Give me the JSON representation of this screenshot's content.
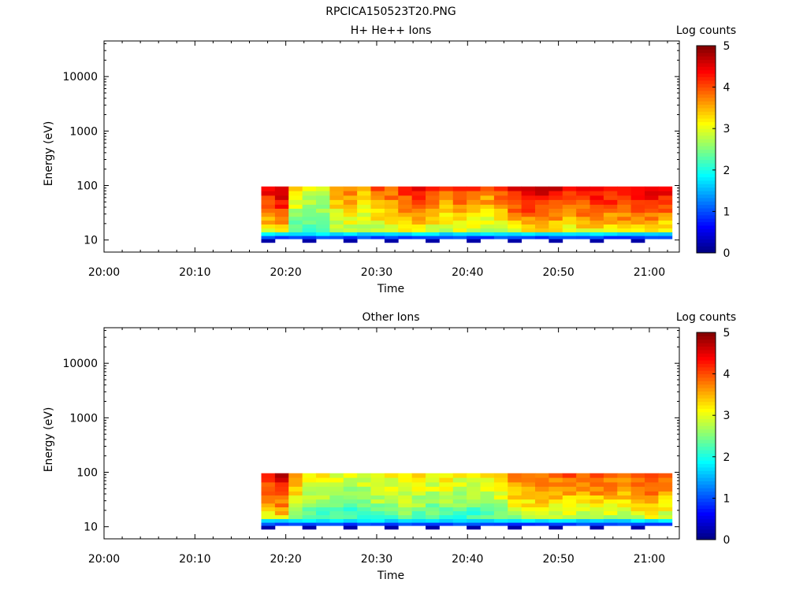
{
  "title": "RPCICA150523T20.PNG",
  "chart_data": [
    {
      "type": "heatmap",
      "title": "H+ He++ Ions",
      "xlabel": "Time",
      "ylabel": "Energy (eV)",
      "colorbar_label": "Log counts",
      "colorbar_ticks": [
        "0",
        "1",
        "2",
        "3",
        "4",
        "5"
      ],
      "clim": [
        0,
        5
      ],
      "x_ticks": [
        "20:00",
        "20:10",
        "20:20",
        "20:30",
        "20:40",
        "20:50",
        "21:00"
      ],
      "xlim_minutes": [
        0,
        63.3
      ],
      "y_ticks": [
        "10",
        "100",
        "1000",
        "10000"
      ],
      "y_scale": "log",
      "ylim_eV": [
        6,
        45000
      ],
      "data_start_minute": 17.3,
      "data_end_minute": 62.5,
      "time_bins": 30,
      "energy_bands_eV": [
        9,
        10.5,
        12,
        14,
        16.5,
        19.5,
        23,
        27,
        32,
        38,
        45,
        55,
        66,
        80,
        96
      ],
      "log_counts_profile": [
        4.4,
        4.7,
        3.2,
        3.0,
        2.9,
        3.6,
        3.8,
        3.6,
        3.9,
        4.0,
        4.2,
        4.3,
        4.1,
        3.9,
        4.1,
        4.0,
        3.8,
        4.0,
        4.4,
        4.6,
        4.6,
        4.5,
        4.3,
        4.4,
        4.4,
        4.4,
        4.5,
        4.5,
        4.6,
        4.4
      ],
      "grid": false
    },
    {
      "type": "heatmap",
      "title": "Other Ions",
      "xlabel": "Time",
      "ylabel": "Energy (eV)",
      "colorbar_label": "Log counts",
      "colorbar_ticks": [
        "0",
        "1",
        "2",
        "3",
        "4",
        "5"
      ],
      "clim": [
        0,
        5
      ],
      "x_ticks": [
        "20:00",
        "20:10",
        "20:20",
        "20:30",
        "20:40",
        "20:50",
        "21:00"
      ],
      "xlim_minutes": [
        0,
        63.3
      ],
      "y_ticks": [
        "10",
        "100",
        "1000",
        "10000"
      ],
      "y_scale": "log",
      "ylim_eV": [
        6,
        45000
      ],
      "data_start_minute": 17.3,
      "data_end_minute": 62.5,
      "time_bins": 30,
      "energy_bands_eV": [
        9,
        10.5,
        12,
        14,
        16.5,
        19.5,
        23,
        27,
        32,
        38,
        45,
        55,
        66,
        80,
        96
      ],
      "log_counts_profile": [
        4.3,
        4.6,
        3.6,
        3.2,
        3.1,
        3.0,
        2.9,
        3.0,
        3.2,
        3.1,
        3.3,
        3.2,
        3.1,
        3.2,
        3.1,
        3.0,
        3.2,
        3.4,
        3.7,
        3.9,
        3.9,
        3.9,
        3.9,
        3.9,
        4.0,
        3.9,
        3.9,
        4.0,
        4.2,
        3.9
      ],
      "grid": false
    }
  ]
}
